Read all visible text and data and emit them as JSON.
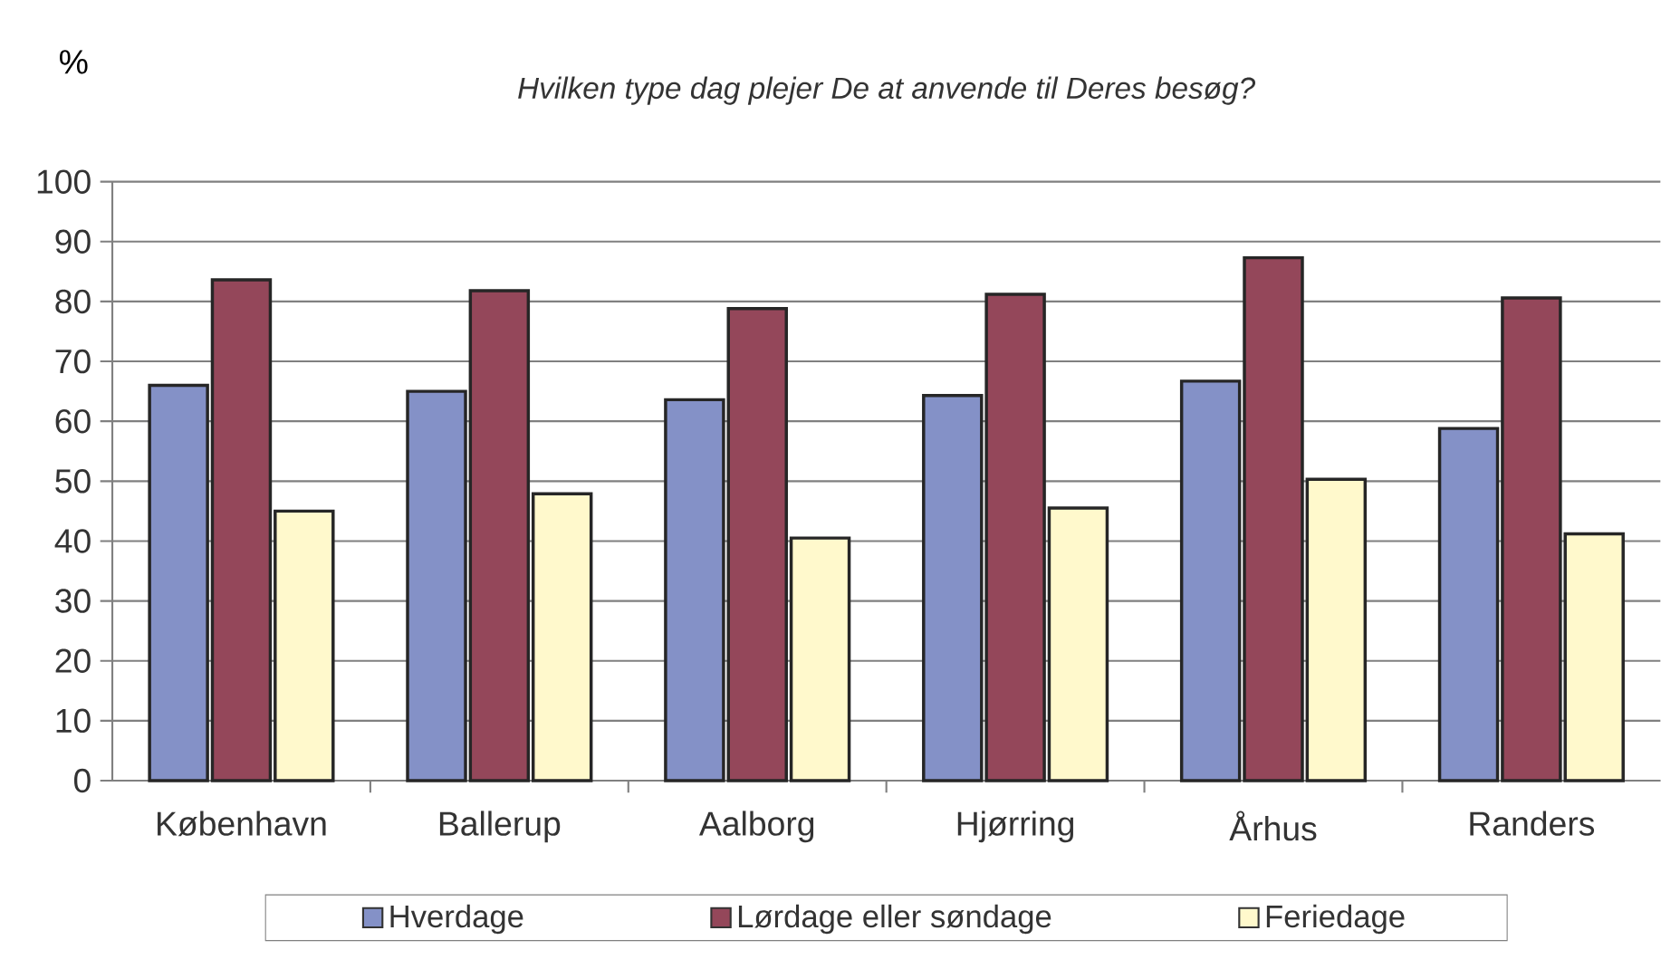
{
  "chart_data": {
    "type": "bar",
    "title": "*Hvilken type dag plejer De at anvende  til Deres besøg?*",
    "ylabel": "%",
    "categories": [
      "København",
      "Ballerup",
      "Aalborg",
      "Hjørring",
      "Århus",
      "Randers"
    ],
    "series": [
      {
        "name": "Hverdage",
        "color": "#8491c7",
        "values": [
          66,
          65,
          63.6,
          64.3,
          66.7,
          58.8
        ]
      },
      {
        "name": "Lørdage eller søndage",
        "color": "#94475a",
        "values": [
          83.6,
          81.8,
          78.8,
          81.2,
          87.3,
          80.6
        ]
      },
      {
        "name": "Feriedage",
        "color": "#fff9cc",
        "values": [
          45,
          47.9,
          40.5,
          45.5,
          50.3,
          41.2
        ]
      }
    ],
    "ylim": [
      0,
      100
    ],
    "yticks": [
      0,
      10,
      20,
      30,
      40,
      50,
      60,
      70,
      80,
      90,
      100
    ],
    "grid": "y",
    "legend": "bottom"
  }
}
